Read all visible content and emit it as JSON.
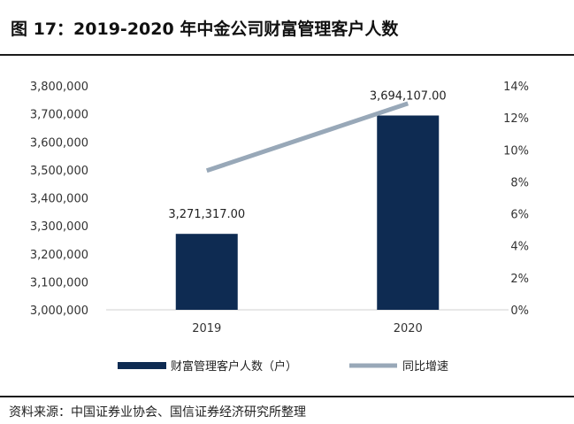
{
  "header": {
    "title": "图 17：2019-2020 年中金公司财富管理客户人数"
  },
  "footer": {
    "source": "资料来源：中国证券业协会、国信证券经济研究所整理"
  },
  "colors": {
    "bar": "#0e2b52",
    "line": "#98a8b8"
  },
  "chart_data": {
    "type": "bar",
    "categories": [
      "2019",
      "2020"
    ],
    "series": [
      {
        "name": "财富管理客户人数（户）",
        "type": "bar",
        "axis": "left",
        "values": [
          3271317.0,
          3694107.0
        ],
        "labels": [
          "3,271,317.00",
          "3,694,107.00"
        ]
      },
      {
        "name": "同比增速",
        "type": "line",
        "axis": "right",
        "values": [
          8.7,
          12.9
        ]
      }
    ],
    "left_axis": {
      "min": 3000000,
      "max": 3800000,
      "ticks": [
        3000000,
        3100000,
        3200000,
        3300000,
        3400000,
        3500000,
        3600000,
        3700000,
        3800000
      ],
      "tick_labels": [
        "3,000,000",
        "3,100,000",
        "3,200,000",
        "3,300,000",
        "3,400,000",
        "3,500,000",
        "3,600,000",
        "3,700,000",
        "3,800,000"
      ]
    },
    "right_axis": {
      "min": 0,
      "max": 14,
      "ticks": [
        0,
        2,
        4,
        6,
        8,
        10,
        12,
        14
      ],
      "tick_labels": [
        "0%",
        "2%",
        "4%",
        "6%",
        "8%",
        "10%",
        "12%",
        "14%"
      ]
    },
    "legend": {
      "position": "bottom"
    }
  }
}
